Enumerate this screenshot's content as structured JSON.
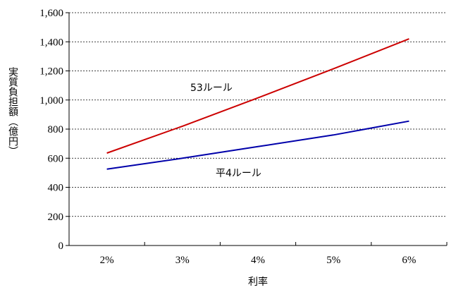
{
  "chart_data": {
    "type": "line",
    "x": [
      "2%",
      "3%",
      "4%",
      "5%",
      "6%"
    ],
    "xlabel": "利率",
    "ylabel": "実質負担額（億円）",
    "ylim": [
      0,
      1600
    ],
    "yticks": [
      "0",
      "200",
      "400",
      "600",
      "800",
      "1,000",
      "1,200",
      "1,400",
      "1,600"
    ],
    "grid": true,
    "series": [
      {
        "name": "53ルール",
        "values": [
          635,
          820,
          1015,
          1215,
          1420
        ],
        "color": "#cc0000"
      },
      {
        "name": "平4ルール",
        "values": [
          525,
          600,
          680,
          760,
          855
        ],
        "color": "#0000aa"
      }
    ]
  }
}
